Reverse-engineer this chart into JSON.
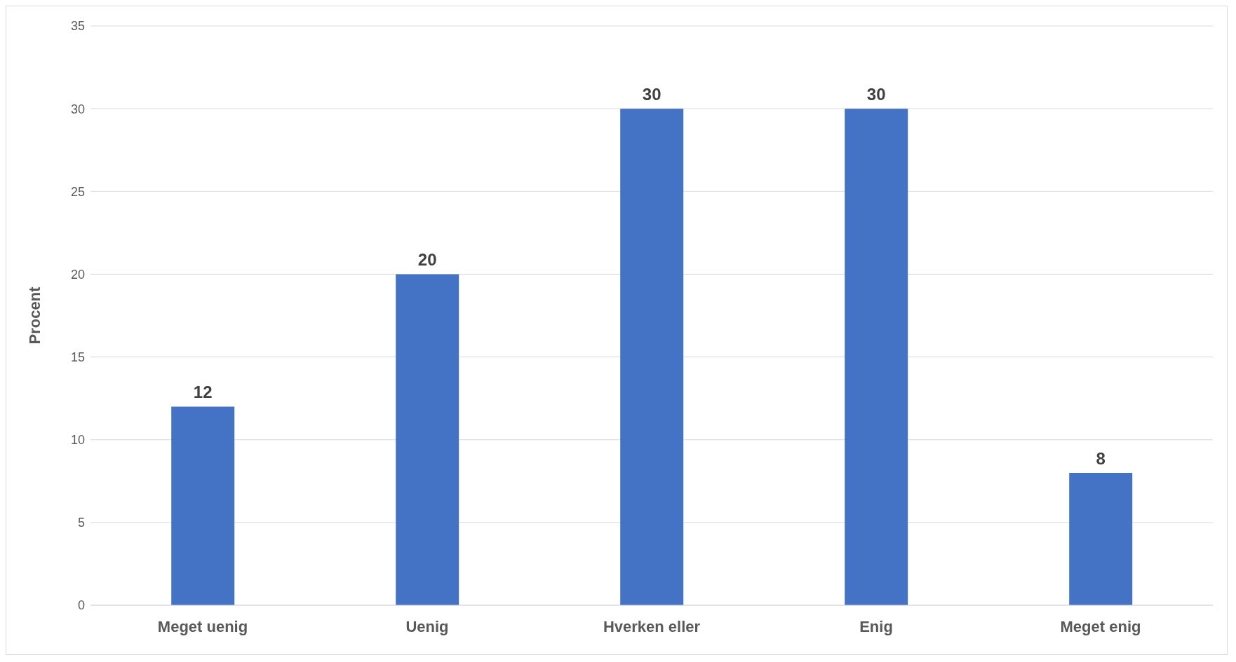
{
  "chart_data": {
    "type": "bar",
    "ylabel": "Procent",
    "categories": [
      "Meget uenig",
      "Uenig",
      "Hverken eller",
      "Enig",
      "Meget enig"
    ],
    "values": [
      12,
      20,
      30,
      30,
      8
    ],
    "color": "#4472c4",
    "ylim": [
      0,
      35
    ],
    "yticks": [
      0,
      5,
      10,
      15,
      20,
      25,
      30,
      35
    ],
    "grid": "y",
    "data_labels": true
  }
}
